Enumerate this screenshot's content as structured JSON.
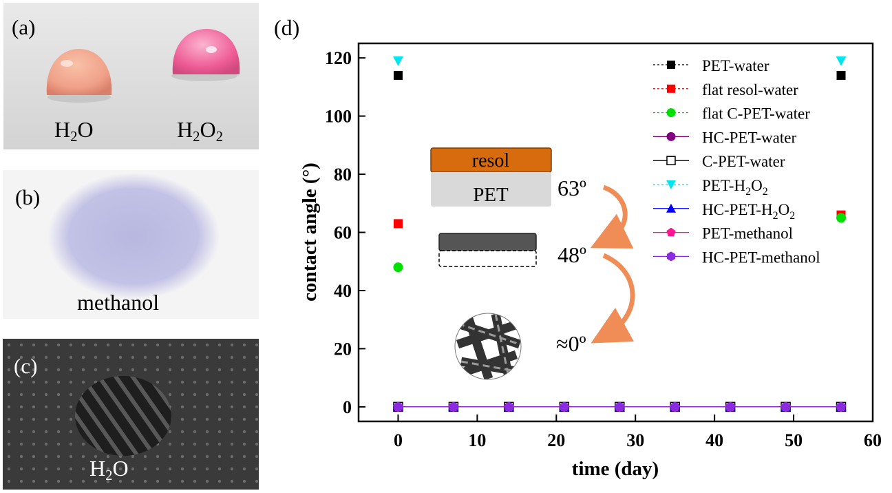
{
  "panels": {
    "a": {
      "label": "(a)",
      "drops": [
        {
          "base": "H",
          "sub1": "2",
          "mid": "O",
          "sub2": ""
        },
        {
          "base": "H",
          "sub1": "2",
          "mid": "O",
          "sub2": "2"
        }
      ]
    },
    "b": {
      "label": "(b)",
      "liquid": "methanol"
    },
    "c": {
      "label": "(c)",
      "liquid": {
        "base": "H",
        "sub1": "2",
        "mid": "O"
      }
    },
    "d": {
      "label": "(d)"
    }
  },
  "colors": {
    "drop_water": "#f0a088",
    "drop_h2o2": "#ee5c96",
    "methanol_spot": "#b8b8e0",
    "resol": "#d66c0e",
    "pet": "#d9d9d9",
    "arrow": "#f08c55"
  },
  "inset": {
    "resol_label": "resol",
    "pet_label": "PET",
    "angle_1": "63º",
    "angle_2": "48º",
    "angle_3": "≈0º"
  },
  "chart_data": {
    "type": "scatter",
    "xlabel": "time (day)",
    "ylabel": "contact angle (°)",
    "xlim": [
      -5,
      60
    ],
    "ylim": [
      -5,
      125
    ],
    "xticks": [
      0,
      10,
      20,
      30,
      40,
      50,
      60
    ],
    "yticks": [
      0,
      20,
      40,
      60,
      80,
      100,
      120
    ],
    "legend_position": "top-right",
    "series": [
      {
        "name": "PET-water",
        "sub": "",
        "tail": "",
        "marker": "square",
        "color": "#000000",
        "line": "dotted",
        "points": [
          [
            0,
            114
          ],
          [
            56,
            114
          ]
        ]
      },
      {
        "name": "flat resol-water",
        "sub": "",
        "tail": "",
        "marker": "square",
        "color": "#ff0000",
        "line": "dotted",
        "points": [
          [
            0,
            63
          ],
          [
            56,
            66
          ]
        ]
      },
      {
        "name": "flat C-PET-water",
        "sub": "",
        "tail": "",
        "marker": "circle",
        "color": "#00e000",
        "line": "dotted",
        "points": [
          [
            0,
            48
          ],
          [
            56,
            65
          ]
        ]
      },
      {
        "name": "HC-PET-water",
        "sub": "",
        "tail": "",
        "marker": "circle",
        "color": "#800080",
        "line": "solid",
        "points": [
          [
            0,
            0
          ],
          [
            7,
            0
          ],
          [
            14,
            0
          ],
          [
            21,
            0
          ],
          [
            28,
            0
          ],
          [
            35,
            0
          ],
          [
            42,
            0
          ],
          [
            49,
            0
          ],
          [
            56,
            0
          ]
        ]
      },
      {
        "name": "C-PET-water",
        "sub": "",
        "tail": "",
        "marker": "square-open",
        "color": "#000000",
        "line": "solid",
        "points": [
          [
            0,
            0
          ],
          [
            7,
            0
          ],
          [
            14,
            0
          ],
          [
            21,
            0
          ],
          [
            28,
            0
          ],
          [
            35,
            0
          ],
          [
            42,
            0
          ],
          [
            49,
            0
          ],
          [
            56,
            0
          ]
        ]
      },
      {
        "name": "PET-H",
        "sub": "2",
        "tail": "O",
        "sub2": "2",
        "marker": "triangle-down",
        "color": "#00e5ee",
        "line": "dotted",
        "points": [
          [
            0,
            119
          ],
          [
            56,
            119
          ]
        ]
      },
      {
        "name": "HC-PET-H",
        "sub": "2",
        "tail": "O",
        "sub2": "2",
        "marker": "triangle-up",
        "color": "#0000ff",
        "line": "solid",
        "points": [
          [
            0,
            0
          ],
          [
            7,
            0
          ],
          [
            14,
            0
          ],
          [
            21,
            0
          ],
          [
            28,
            0
          ],
          [
            35,
            0
          ],
          [
            42,
            0
          ],
          [
            49,
            0
          ],
          [
            56,
            0
          ]
        ]
      },
      {
        "name": "PET-methanol",
        "sub": "",
        "tail": "",
        "marker": "pentagon",
        "color": "#ff1493",
        "line": "solid",
        "points": [
          [
            0,
            0
          ],
          [
            7,
            0
          ],
          [
            14,
            0
          ],
          [
            21,
            0
          ],
          [
            28,
            0
          ],
          [
            35,
            0
          ],
          [
            42,
            0
          ],
          [
            49,
            0
          ],
          [
            56,
            0
          ]
        ]
      },
      {
        "name": "HC-PET-methanol",
        "sub": "",
        "tail": "",
        "marker": "hexagon",
        "color": "#8a2be2",
        "line": "solid",
        "points": [
          [
            0,
            0
          ],
          [
            7,
            0
          ],
          [
            14,
            0
          ],
          [
            21,
            0
          ],
          [
            28,
            0
          ],
          [
            35,
            0
          ],
          [
            42,
            0
          ],
          [
            49,
            0
          ],
          [
            56,
            0
          ]
        ]
      }
    ]
  }
}
